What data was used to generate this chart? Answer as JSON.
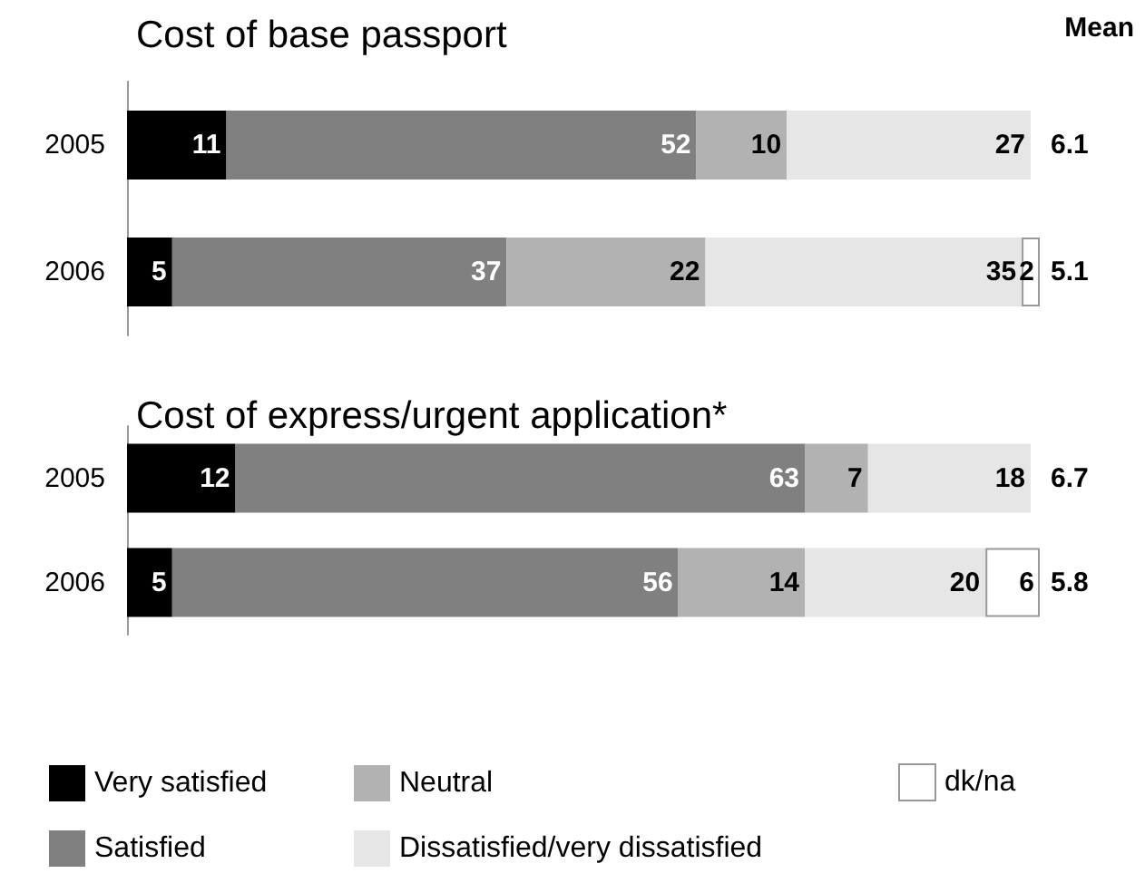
{
  "chart_data": [
    {
      "type": "bar",
      "title": "Cost of base passport",
      "orientation": "horizontal",
      "stacked": true,
      "data_labels": true,
      "legend": false,
      "categories": [
        "2005",
        "2006"
      ],
      "series": [
        {
          "color": "#000000",
          "values": [
            11,
            5
          ]
        },
        {
          "color": "#808080",
          "values": [
            52,
            37
          ]
        },
        {
          "color": "#b2b2b2",
          "values": [
            10,
            22
          ]
        },
        {
          "color": "#e6e6e6",
          "values": [
            27,
            35
          ]
        },
        {
          "color": "#ffffff",
          "values": [
            null,
            2
          ]
        }
      ],
      "annotations": [
        "Mean",
        "6.1",
        "5.1"
      ]
    },
    {
      "type": "bar",
      "title": "Cost of express/urgent application*",
      "orientation": "horizontal",
      "stacked": true,
      "data_labels": true,
      "legend": "bottom",
      "categories": [
        "2005",
        "2006"
      ],
      "series": [
        {
          "name": "Very satisfied",
          "color": "#000000",
          "values": [
            12,
            5
          ]
        },
        {
          "name": "Satisfied",
          "color": "#808080",
          "values": [
            63,
            56
          ]
        },
        {
          "name": "Neutral",
          "color": "#b2b2b2",
          "values": [
            7,
            14
          ]
        },
        {
          "name": "Dissatisfied/very dissatisfied",
          "color": "#e6e6e6",
          "values": [
            18,
            20
          ]
        },
        {
          "name": "dk/na",
          "color": "#ffffff",
          "values": [
            null,
            6
          ]
        }
      ],
      "annotations": [
        "6.7",
        "5.8"
      ]
    }
  ]
}
